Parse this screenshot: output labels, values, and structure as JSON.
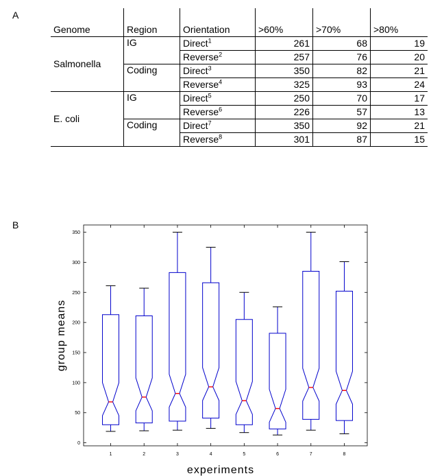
{
  "panel_a_label": "A",
  "panel_b_label": "B",
  "table": {
    "headers": [
      "Genome",
      "Region",
      "Orientation",
      ">60%",
      ">70%",
      ">80%"
    ],
    "rows": [
      {
        "genome": "Salmonella",
        "region": "IG",
        "orientation": "Direct",
        "sup": "1",
        "v60": "261",
        "v70": "68",
        "v80": "19"
      },
      {
        "genome": "",
        "region": "",
        "orientation": "Reverse",
        "sup": "2",
        "v60": "257",
        "v70": "76",
        "v80": "20"
      },
      {
        "genome": "",
        "region": "Coding",
        "orientation": "Direct",
        "sup": "3",
        "v60": "350",
        "v70": "82",
        "v80": "21"
      },
      {
        "genome": "",
        "region": "",
        "orientation": "Reverse",
        "sup": "4",
        "v60": "325",
        "v70": "93",
        "v80": "24"
      },
      {
        "genome": "E. coli",
        "region": "IG",
        "orientation": "Direct",
        "sup": "5",
        "v60": "250",
        "v70": "70",
        "v80": "17"
      },
      {
        "genome": "",
        "region": "",
        "orientation": "Reverse",
        "sup": "6",
        "v60": "226",
        "v70": "57",
        "v80": "13"
      },
      {
        "genome": "",
        "region": "Coding",
        "orientation": "Direct",
        "sup": "7",
        "v60": "350",
        "v70": "92",
        "v80": "21"
      },
      {
        "genome": "",
        "region": "",
        "orientation": "Reverse",
        "sup": "8",
        "v60": "301",
        "v70": "87",
        "v80": "15"
      }
    ]
  },
  "chart_data": {
    "type": "boxplot",
    "xlabel": "experiments",
    "ylabel": "group means",
    "categories": [
      "1",
      "2",
      "3",
      "4",
      "5",
      "6",
      "7",
      "8"
    ],
    "yticks": [
      "0",
      "50",
      "100",
      "150",
      "200",
      "250",
      "300",
      "350"
    ],
    "ylim": [
      -5,
      362
    ],
    "grid": false,
    "notched": true,
    "box_color": "#0000cc",
    "median_color": "#ff0000",
    "whisker_cap_color": "#000000",
    "boxes": [
      {
        "min": 19,
        "q1": 30,
        "median": 68,
        "q3": 213,
        "max": 261
      },
      {
        "min": 20,
        "q1": 33,
        "median": 76,
        "q3": 211,
        "max": 257
      },
      {
        "min": 21,
        "q1": 36,
        "median": 82,
        "q3": 283,
        "max": 350
      },
      {
        "min": 24,
        "q1": 41,
        "median": 93,
        "q3": 266,
        "max": 325
      },
      {
        "min": 17,
        "q1": 30,
        "median": 70,
        "q3": 205,
        "max": 250
      },
      {
        "min": 13,
        "q1": 23,
        "median": 57,
        "q3": 182,
        "max": 226
      },
      {
        "min": 21,
        "q1": 39,
        "median": 92,
        "q3": 285,
        "max": 350
      },
      {
        "min": 15,
        "q1": 37,
        "median": 87,
        "q3": 252,
        "max": 301
      }
    ]
  }
}
